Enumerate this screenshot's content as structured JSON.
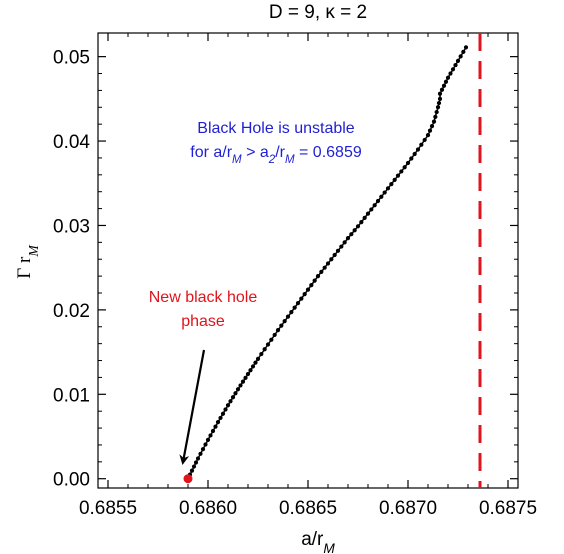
{
  "chart_data": {
    "type": "scatter",
    "title": "D = 9, κ = 2",
    "xlabel": "a/r_M",
    "ylabel": "Γ r_M",
    "xlim": [
      0.68545,
      0.68755
    ],
    "ylim": [
      -0.0011,
      0.0528
    ],
    "x_ticks": [
      0.6855,
      0.686,
      0.6865,
      0.687,
      0.6875
    ],
    "x_tick_labels": [
      "0.6855",
      "0.6860",
      "0.6865",
      "0.6870",
      "0.6875"
    ],
    "y_ticks": [
      0.0,
      0.01,
      0.02,
      0.03,
      0.04,
      0.05
    ],
    "y_tick_labels": [
      "0.00",
      "0.01",
      "0.02",
      "0.03",
      "0.04",
      "0.05"
    ],
    "grid": false,
    "series": [
      {
        "color": "#000000",
        "x": [
          0.6859,
          0.68595,
          0.686,
          0.68605,
          0.6861,
          0.68615,
          0.6862,
          0.68625,
          0.6863,
          0.68635,
          0.6864,
          0.68645,
          0.6865,
          0.68655,
          0.6866,
          0.68665,
          0.6867,
          0.68675,
          0.6868,
          0.68685,
          0.6869,
          0.68695,
          0.687,
          0.68705,
          0.6871,
          0.68713,
          0.68715,
          0.68716,
          0.68716,
          0.6872,
          0.68725,
          0.68729
        ],
        "y": [
          0.0,
          0.0024,
          0.0046,
          0.0067,
          0.0087,
          0.0106,
          0.0124,
          0.0142,
          0.0159,
          0.0176,
          0.0192,
          0.0208,
          0.0224,
          0.024,
          0.0255,
          0.027,
          0.0285,
          0.0299,
          0.0314,
          0.0329,
          0.0344,
          0.0359,
          0.0374,
          0.039,
          0.0407,
          0.0423,
          0.044,
          0.045,
          0.0456,
          0.0475,
          0.0495,
          0.0511
        ]
      }
    ],
    "highlight_point": {
      "x": 0.6859,
      "y": 0.0,
      "color": "#e0141c"
    },
    "vertical_line": {
      "x": 0.68736,
      "color": "#e0141c",
      "style": "dashed"
    },
    "annotations": [
      {
        "lines": [
          "Black Hole is unstable",
          "for a/r_M > a_2/r_M = 0.6859"
        ],
        "color": "#1f1fd6"
      },
      {
        "lines": [
          "New black hole",
          "phase"
        ],
        "color": "#e0141c"
      }
    ]
  }
}
